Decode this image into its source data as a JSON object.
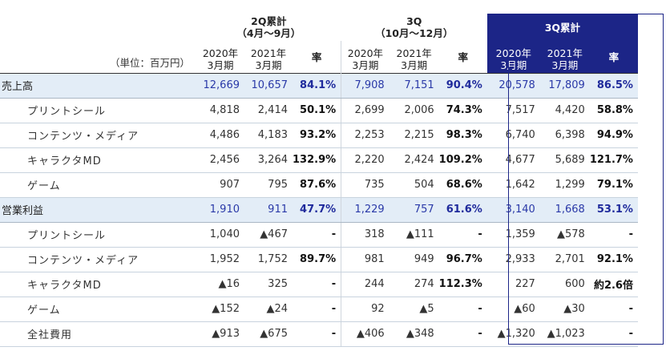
{
  "header": {
    "unit": "（単位：百万円）",
    "groups": [
      {
        "title": "2Q累計",
        "sub": "（4月～9月）"
      },
      {
        "title": "3Q",
        "sub": "（10月～12月）"
      },
      {
        "title": "3Q累計",
        "sub": ""
      }
    ],
    "year_prev": [
      "2020年",
      "3月期"
    ],
    "year_curr": [
      "2021年",
      "3月期"
    ],
    "rate_label": "率"
  },
  "rows": [
    {
      "kind": "section",
      "label": "売上高",
      "values": [
        "12,669",
        "10,657",
        "84.1%",
        "7,908",
        "7,151",
        "90.4%",
        "20,578",
        "17,809",
        "86.5%"
      ]
    },
    {
      "kind": "sub",
      "label": "プリントシール",
      "values": [
        "4,818",
        "2,414",
        "50.1%",
        "2,699",
        "2,006",
        "74.3%",
        "7,517",
        "4,420",
        "58.8%"
      ]
    },
    {
      "kind": "sub",
      "label": "コンテンツ・メディア",
      "values": [
        "4,486",
        "4,183",
        "93.2%",
        "2,253",
        "2,215",
        "98.3%",
        "6,740",
        "6,398",
        "94.9%"
      ]
    },
    {
      "kind": "sub",
      "label": "キャラクタMD",
      "values": [
        "2,456",
        "3,264",
        "132.9%",
        "2,220",
        "2,424",
        "109.2%",
        "4,677",
        "5,689",
        "121.7%"
      ]
    },
    {
      "kind": "sub",
      "label": "ゲーム",
      "values": [
        "907",
        "795",
        "87.6%",
        "735",
        "504",
        "68.6%",
        "1,642",
        "1,299",
        "79.1%"
      ]
    },
    {
      "kind": "section",
      "label": "営業利益",
      "values": [
        "1,910",
        "911",
        "47.7%",
        "1,229",
        "757",
        "61.6%",
        "3,140",
        "1,668",
        "53.1%"
      ]
    },
    {
      "kind": "sub",
      "label": "プリントシール",
      "values": [
        "1,040",
        "▲467",
        "-",
        "318",
        "▲111",
        "-",
        "1,359",
        "▲578",
        "-"
      ]
    },
    {
      "kind": "sub",
      "label": "コンテンツ・メディア",
      "values": [
        "1,952",
        "1,752",
        "89.7%",
        "981",
        "949",
        "96.7%",
        "2,933",
        "2,701",
        "92.1%"
      ]
    },
    {
      "kind": "sub",
      "label": "キャラクタMD",
      "values": [
        "▲16",
        "325",
        "-",
        "244",
        "274",
        "112.3%",
        "227",
        "600",
        "約2.6倍"
      ]
    },
    {
      "kind": "sub",
      "label": "ゲーム",
      "values": [
        "▲152",
        "▲24",
        "-",
        "92",
        "▲5",
        "-",
        "▲60",
        "▲30",
        "-"
      ]
    },
    {
      "kind": "sub",
      "label": "全社費用",
      "values": [
        "▲913",
        "▲675",
        "-",
        "▲406",
        "▲348",
        "-",
        "▲1,320",
        "▲1,023",
        "-"
      ]
    }
  ]
}
